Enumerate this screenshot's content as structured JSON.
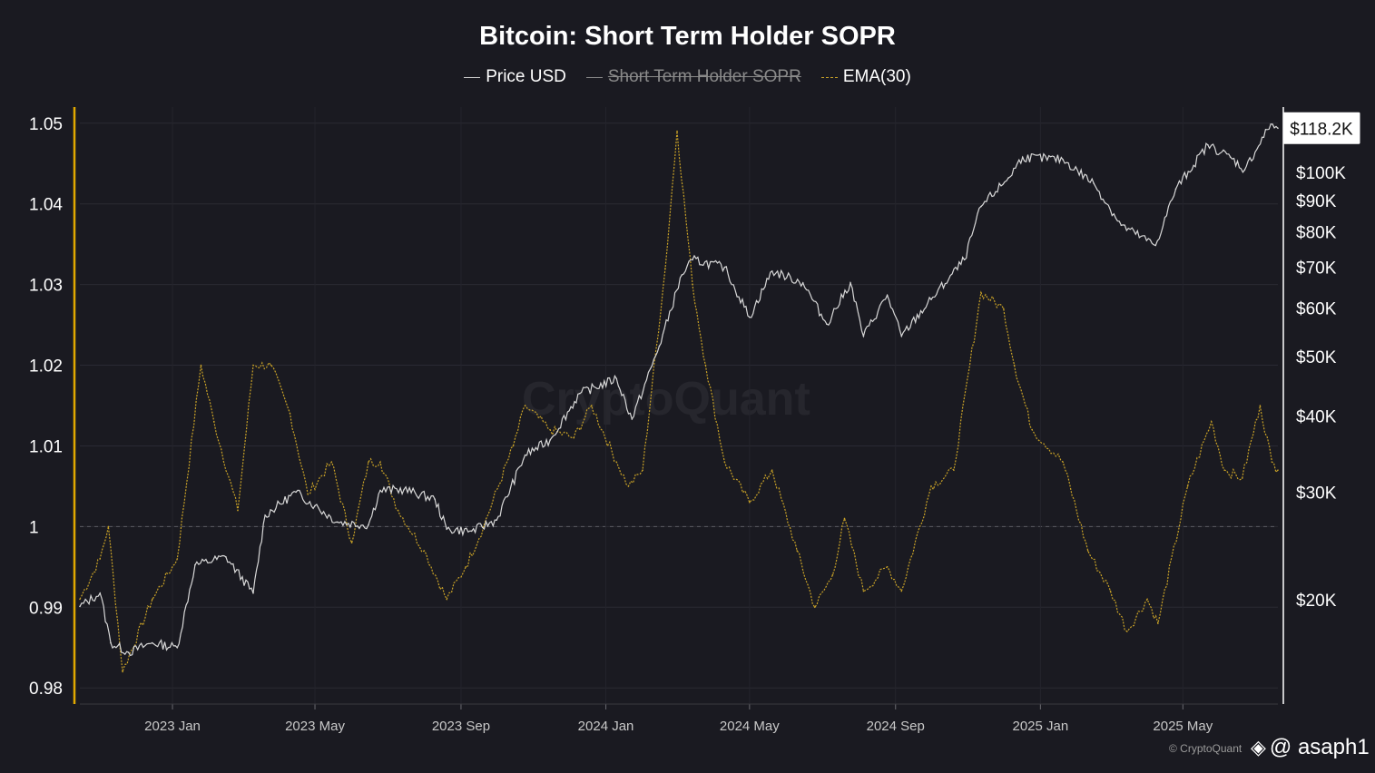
{
  "chart_data": {
    "type": "line",
    "title": "Bitcoin: Short Term Holder SOPR",
    "legend": [
      {
        "label": "Price USD",
        "color": "#d8d8d8",
        "style": "solid",
        "enabled": true
      },
      {
        "label": "Short Term Holder SOPR",
        "color": "#8a8a8a",
        "style": "solid",
        "enabled": false
      },
      {
        "label": "EMA(30)",
        "color": "#c9a227",
        "style": "dashed",
        "enabled": true
      }
    ],
    "left_axis": {
      "ticks": [
        "1.05",
        "1.04",
        "1.03",
        "1.02",
        "1.01",
        "1",
        "0.99",
        "0.98"
      ],
      "tick_values": [
        1.05,
        1.04,
        1.03,
        1.02,
        1.01,
        1.0,
        0.99,
        0.98
      ],
      "range": [
        0.978,
        1.052
      ],
      "axis_color": "#e0a800"
    },
    "right_axis": {
      "scale": "log",
      "ticks": [
        "$100K",
        "$90K",
        "$80K",
        "$70K",
        "$60K",
        "$50K",
        "$40K",
        "$30K",
        "$20K"
      ],
      "tick_values": [
        100000,
        90000,
        80000,
        70000,
        60000,
        50000,
        40000,
        30000,
        20000
      ],
      "range": [
        13500,
        128000
      ],
      "current_label": "$118.2K",
      "current_value": 118200
    },
    "x_axis": {
      "ticks": [
        "2023 Jan",
        "2023 May",
        "2023 Sep",
        "2024 Jan",
        "2024 May",
        "2024 Sep",
        "2025 Jan",
        "2025 May"
      ],
      "range": [
        "2022-10-15",
        "2025-07-20"
      ]
    },
    "reference_line": 1.0,
    "grid": true,
    "series": [
      {
        "name": "Price USD",
        "axis": "right",
        "x": [
          "2022-10-15",
          "2022-11-01",
          "2022-11-10",
          "2022-11-25",
          "2022-12-15",
          "2023-01-05",
          "2023-01-20",
          "2023-02-15",
          "2023-03-10",
          "2023-03-20",
          "2023-04-15",
          "2023-05-01",
          "2023-05-20",
          "2023-06-15",
          "2023-06-25",
          "2023-07-15",
          "2023-08-10",
          "2023-08-20",
          "2023-09-10",
          "2023-10-01",
          "2023-10-25",
          "2023-11-15",
          "2023-12-10",
          "2024-01-10",
          "2024-01-23",
          "2024-02-15",
          "2024-03-05",
          "2024-03-14",
          "2024-04-10",
          "2024-05-01",
          "2024-05-20",
          "2024-06-15",
          "2024-07-05",
          "2024-07-25",
          "2024-08-05",
          "2024-08-25",
          "2024-09-06",
          "2024-10-01",
          "2024-10-29",
          "2024-11-12",
          "2024-12-05",
          "2024-12-17",
          "2025-01-20",
          "2025-02-15",
          "2025-03-10",
          "2025-04-08",
          "2025-04-25",
          "2025-05-22",
          "2025-06-10",
          "2025-06-22",
          "2025-07-14",
          "2025-07-20"
        ],
        "y": [
          19500,
          20500,
          17000,
          16400,
          17000,
          16700,
          22800,
          23500,
          20500,
          27500,
          30000,
          28500,
          26800,
          26500,
          30200,
          30300,
          29200,
          26100,
          25900,
          27000,
          34500,
          36500,
          43500,
          46000,
          39500,
          52000,
          68000,
          72000,
          70000,
          58000,
          69000,
          66000,
          56500,
          66000,
          54000,
          63000,
          54000,
          62000,
          72000,
          88000,
          98000,
          106000,
          105000,
          96000,
          82000,
          76000,
          94000,
          111000,
          106000,
          101000,
          120000,
          118200
        ]
      },
      {
        "name": "EMA(30)",
        "axis": "left",
        "x": [
          "2022-10-15",
          "2022-11-01",
          "2022-11-08",
          "2022-11-20",
          "2022-12-15",
          "2023-01-05",
          "2023-01-25",
          "2023-02-05",
          "2023-02-25",
          "2023-03-10",
          "2023-03-25",
          "2023-04-10",
          "2023-04-25",
          "2023-05-15",
          "2023-06-01",
          "2023-06-15",
          "2023-06-25",
          "2023-07-10",
          "2023-08-01",
          "2023-08-20",
          "2023-09-05",
          "2023-09-20",
          "2023-10-15",
          "2023-10-25",
          "2023-11-15",
          "2023-12-05",
          "2023-12-20",
          "2024-01-10",
          "2024-01-20",
          "2024-02-01",
          "2024-02-20",
          "2024-03-01",
          "2024-03-14",
          "2024-03-25",
          "2024-04-10",
          "2024-05-01",
          "2024-05-20",
          "2024-06-10",
          "2024-06-25",
          "2024-07-10",
          "2024-07-20",
          "2024-08-05",
          "2024-08-25",
          "2024-09-06",
          "2024-10-01",
          "2024-10-20",
          "2024-11-12",
          "2024-12-01",
          "2024-12-10",
          "2024-12-25",
          "2025-01-20",
          "2025-02-10",
          "2025-03-01",
          "2025-03-15",
          "2025-04-01",
          "2025-04-10",
          "2025-05-05",
          "2025-05-25",
          "2025-06-05",
          "2025-06-20",
          "2025-07-05",
          "2025-07-15",
          "2025-07-20"
        ],
        "y": [
          0.991,
          0.996,
          1.0,
          0.982,
          0.991,
          0.996,
          1.02,
          1.013,
          1.002,
          1.02,
          1.02,
          1.014,
          1.004,
          1.008,
          0.998,
          1.008,
          1.008,
          1.002,
          0.997,
          0.991,
          0.995,
          1.0,
          1.01,
          1.015,
          1.012,
          1.011,
          1.015,
          1.008,
          1.005,
          1.007,
          1.032,
          1.049,
          1.03,
          1.02,
          1.008,
          1.003,
          1.007,
          0.997,
          0.99,
          0.994,
          1.001,
          0.992,
          0.995,
          0.992,
          1.005,
          1.007,
          1.029,
          1.027,
          1.02,
          1.012,
          1.008,
          0.997,
          0.992,
          0.987,
          0.991,
          0.988,
          1.005,
          1.013,
          1.007,
          1.006,
          1.015,
          1.008,
          1.007
        ]
      }
    ]
  },
  "watermark": "CryptoQuant",
  "credit": "© CryptoQuant",
  "handle": "@ asaph1",
  "handle_icon": "binance-diamond-icon",
  "colors": {
    "background": "#1a1a21",
    "price_line": "#d8d8d8",
    "ema_line": "#c9a227",
    "left_axis": "#e0a800"
  }
}
